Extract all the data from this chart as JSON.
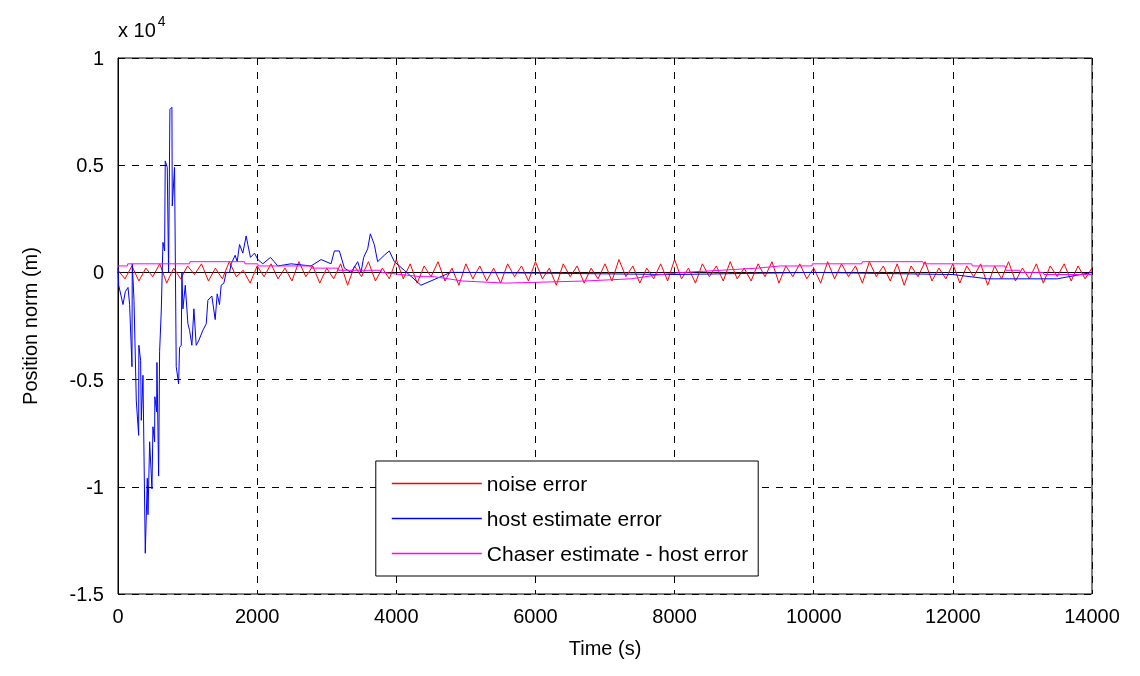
{
  "chart_data": {
    "type": "line",
    "xlabel": "Time (s)",
    "ylabel": "Position norm (m)",
    "annotations": [
      "x 10$^{4}$"
    ],
    "xlim": [
      0,
      14000
    ],
    "xticks": [
      0,
      2000,
      4000,
      6000,
      8000,
      10000,
      12000,
      14000
    ],
    "ylim": [
      -1.5,
      1
    ],
    "yticks": [
      -1.5,
      -1,
      -0.5,
      0,
      0.5,
      1
    ],
    "grid": true,
    "legend": "bottom",
    "marker": "none",
    "line_style": "solid",
    "series": [
      {
        "name": "noise error",
        "color": "#ff0000",
        "x": [
          0,
          100,
          200,
          300,
          400,
          500,
          600,
          700,
          800,
          900,
          1000,
          1100,
          1200,
          1300,
          1400,
          1500,
          1600,
          1700,
          1800,
          1900,
          2000,
          2100,
          2200,
          2300,
          2400,
          2500,
          2600,
          2700,
          2800,
          2900,
          3000,
          3100,
          3200,
          3300,
          3400,
          3500,
          3600,
          3700,
          3800,
          3900,
          4000,
          4100,
          4200,
          4300,
          4400,
          4500,
          4600,
          4700,
          4800,
          4900,
          5000,
          5100,
          5200,
          5300,
          5400,
          5500,
          5600,
          5700,
          5800,
          5900,
          6000,
          6100,
          6200,
          6300,
          6400,
          6500,
          6600,
          6700,
          6800,
          6900,
          7000,
          7100,
          7200,
          7300,
          7400,
          7500,
          7600,
          7700,
          7800,
          7900,
          8000,
          8100,
          8200,
          8300,
          8400,
          8500,
          8600,
          8700,
          8800,
          8900,
          9000,
          9100,
          9200,
          9300,
          9400,
          9500,
          9600,
          9700,
          9800,
          9900,
          10000,
          10100,
          10200,
          10300,
          10400,
          10500,
          10600,
          10700,
          10800,
          10900,
          11000,
          11100,
          11200,
          11300,
          11400,
          11500,
          11600,
          11700,
          11800,
          11900,
          12000,
          12100,
          12200,
          12300,
          12400,
          12500,
          12600,
          12700,
          12800,
          12900,
          13000,
          13100,
          13200,
          13300,
          13400,
          13500,
          13600,
          13700,
          13800,
          13900,
          14000
        ],
        "values": [
          0.01,
          -0.03,
          0.03,
          -0.04,
          0.02,
          -0.02,
          0.04,
          -0.05,
          0.02,
          -0.03,
          0.03,
          -0.01,
          0.04,
          -0.04,
          0.02,
          -0.03,
          0.05,
          -0.02,
          0.01,
          -0.05,
          0.03,
          -0.02,
          0.04,
          -0.03,
          0.02,
          -0.04,
          0.05,
          -0.02,
          0.03,
          -0.05,
          0.02,
          -0.03,
          0.04,
          -0.06,
          0.03,
          -0.02,
          0.05,
          -0.04,
          0.02,
          -0.03,
          0.06,
          -0.03,
          0.04,
          -0.05,
          0.03,
          -0.02,
          0.05,
          -0.04,
          0.02,
          -0.06,
          0.04,
          -0.03,
          0.03,
          -0.04,
          0.02,
          -0.05,
          0.04,
          -0.02,
          0.03,
          -0.04,
          0.05,
          -0.03,
          0.02,
          -0.06,
          0.04,
          -0.02,
          0.03,
          -0.05,
          0.02,
          -0.03,
          0.04,
          -0.04,
          0.06,
          -0.02,
          0.03,
          -0.05,
          0.02,
          -0.03,
          0.04,
          -0.04,
          0.06,
          -0.03,
          0.02,
          -0.05,
          0.04,
          -0.02,
          0.03,
          -0.04,
          0.05,
          -0.03,
          0.02,
          -0.04,
          0.04,
          -0.02,
          0.05,
          -0.05,
          0.03,
          -0.02,
          0.04,
          -0.03,
          0.02,
          -0.05,
          0.05,
          -0.03,
          0.04,
          -0.02,
          0.03,
          -0.05,
          0.05,
          -0.02,
          0.03,
          -0.04,
          0.04,
          -0.06,
          0.03,
          -0.02,
          0.05,
          -0.04,
          0.02,
          -0.03,
          0.04,
          -0.05,
          0.03,
          -0.02,
          0.04,
          -0.06,
          0.03,
          -0.03,
          0.05,
          -0.04,
          0.02,
          -0.03,
          0.04,
          -0.05,
          0.03,
          -0.02,
          0.04,
          -0.04,
          0.03,
          -0.03,
          0.02
        ]
      },
      {
        "name": "host estimate error",
        "color": "#0000ff",
        "x": [
          0,
          10,
          72,
          105,
          144,
          167,
          201,
          205,
          230,
          263,
          297,
          300,
          325,
          335,
          359,
          392,
          421,
          431,
          455,
          488,
          502,
          526,
          530,
          555,
          560,
          584,
          598,
          622,
          646,
          670,
          679,
          708,
          727,
          746,
          775,
          780,
          813,
          837,
          871,
          885,
          909,
          919,
          933,
          967,
          1005,
          1029,
          1062,
          1091,
          1124,
          1158,
          1220,
          1268,
          1292,
          1349,
          1397,
          1426,
          1459,
          1483,
          1522,
          1555,
          1603,
          1627,
          1684,
          1713,
          1747,
          1794,
          1842,
          1866,
          1904,
          1962,
          2010,
          2081,
          2192,
          2297,
          2488,
          2775,
          2919,
          3062,
          3110,
          3182,
          3254,
          3350,
          3445,
          3493,
          3531,
          3589,
          3627,
          3684,
          3732,
          3828,
          3900,
          3972,
          4115,
          4354,
          4783,
          5000,
          8000,
          10000,
          12000,
          12500,
          13500,
          14000
        ],
        "values": [
          0.02,
          -0.06,
          -0.15,
          -0.09,
          -0.07,
          -0.15,
          -0.44,
          0.04,
          -0.13,
          -0.6,
          -0.76,
          -0.34,
          -0.41,
          -0.69,
          -0.48,
          -1.31,
          -0.96,
          -1.13,
          -0.79,
          -1.01,
          -0.72,
          -0.79,
          -0.58,
          -0.65,
          -0.42,
          -0.95,
          -0.37,
          -0.18,
          0.14,
          0.1,
          0.52,
          0.49,
          0,
          0.76,
          0.77,
          0.31,
          0.49,
          -0.44,
          -0.52,
          -0.35,
          -0.34,
          0,
          -0.17,
          -0.06,
          -0.24,
          -0.27,
          -0.34,
          -0.17,
          -0.34,
          -0.32,
          -0.27,
          -0.24,
          -0.13,
          -0.11,
          -0.22,
          -0.1,
          -0.15,
          -0.06,
          -0.05,
          0,
          0,
          0.04,
          0.08,
          0.05,
          0.13,
          0.09,
          0.17,
          0.13,
          0.07,
          0.09,
          0.06,
          0.04,
          0.07,
          0.03,
          0.04,
          0.03,
          0.06,
          0.04,
          0.1,
          0.1,
          0.02,
          0,
          0.05,
          0,
          0.07,
          0.11,
          0.18,
          0.13,
          0.05,
          0.08,
          0.1,
          0.05,
          0.01,
          -0.06,
          0,
          0,
          -0.01,
          0,
          -0.01,
          -0.03,
          -0.03,
          0
        ]
      },
      {
        "name": "Chaser estimate - host error",
        "color": "#ff00ff",
        "x": [
          0,
          134,
          140,
          1029,
          1035,
          1818,
          1825,
          2010,
          2015,
          2775,
          2780,
          3158,
          3165,
          3780,
          3785,
          4354,
          4545,
          4950,
          5573,
          6720,
          7366,
          7800,
          8130,
          9190,
          9520,
          9975,
          9980,
          10690,
          10700,
          11570,
          11580,
          12270,
          12280,
          12750,
          12760,
          12960,
          12970,
          13300,
          13310,
          14000
        ],
        "values": [
          0.03,
          0.03,
          0.04,
          0.04,
          0.05,
          0.05,
          0.04,
          0.04,
          0.03,
          0.03,
          0.02,
          0.02,
          0.01,
          0.01,
          0,
          -0.02,
          -0.02,
          -0.04,
          -0.05,
          -0.04,
          -0.03,
          -0.01,
          0,
          0.02,
          0.03,
          0.03,
          0.04,
          0.04,
          0.05,
          0.05,
          0.04,
          0.04,
          0.03,
          0.03,
          0.01,
          0.01,
          0,
          0,
          -0.01,
          -0.01
        ]
      }
    ]
  }
}
